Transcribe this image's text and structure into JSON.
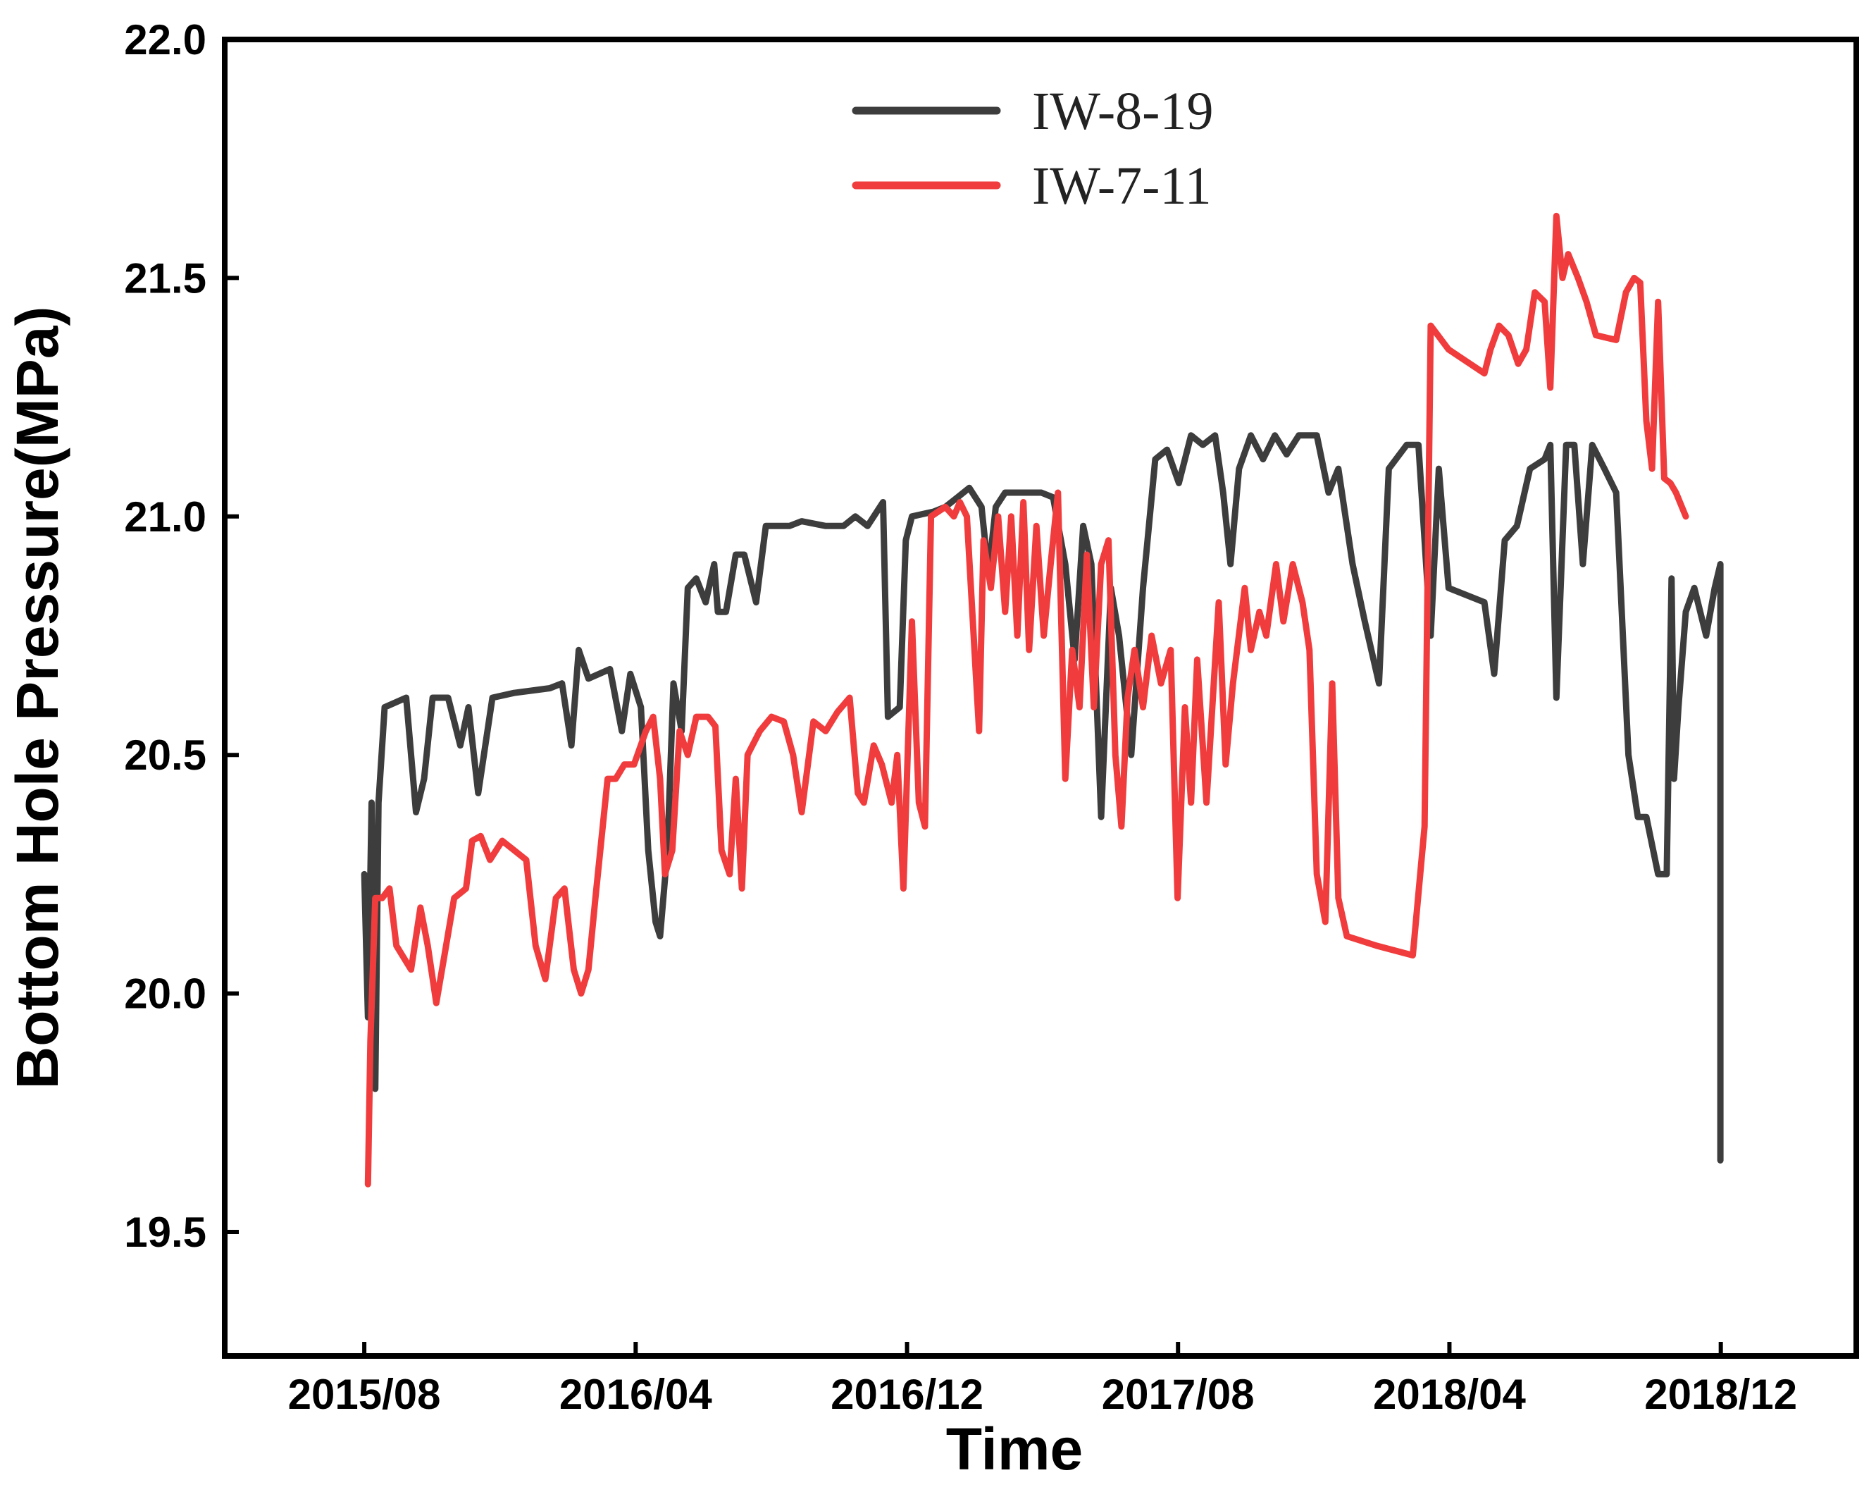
{
  "chart_data": {
    "type": "line",
    "xlabel": "Time",
    "ylabel": "Bottom Hole Pressure(MPa)",
    "xlim": [
      2015.24,
      2019.25
    ],
    "xticks": [
      {
        "value": 2015.583,
        "label": "2015/08"
      },
      {
        "value": 2016.25,
        "label": "2016/04"
      },
      {
        "value": 2016.917,
        "label": "2016/12"
      },
      {
        "value": 2017.583,
        "label": "2017/08"
      },
      {
        "value": 2018.25,
        "label": "2018/04"
      },
      {
        "value": 2018.917,
        "label": "2018/12"
      }
    ],
    "ylim": [
      19.24,
      22.0
    ],
    "yticks": [
      19.5,
      {
        "value": 20.0,
        "label": "20.0"
      },
      20.5,
      {
        "value": 21.0,
        "label": "21.0"
      },
      21.5,
      {
        "value": 22.0,
        "label": "22.0"
      }
    ],
    "grid": false,
    "legend": "upper center",
    "series": [
      {
        "name": "IW-8-19",
        "color": "#3d3d3d",
        "x": [
          2015.583,
          2015.592,
          2015.601,
          2015.61,
          2015.618,
          2015.633,
          2015.686,
          2015.71,
          2015.73,
          2015.751,
          2015.789,
          2015.819,
          2015.839,
          2015.863,
          2015.898,
          2015.951,
          2016.039,
          2016.069,
          2016.092,
          2016.11,
          2016.134,
          2016.187,
          2016.216,
          2016.237,
          2016.263,
          2016.281,
          2016.299,
          2016.31,
          2016.328,
          2016.343,
          2016.363,
          2016.378,
          2016.399,
          2016.422,
          2016.443,
          2016.452,
          2016.472,
          2016.496,
          2016.517,
          2016.546,
          2016.57,
          2016.628,
          2016.658,
          2016.717,
          2016.761,
          2016.79,
          2016.82,
          2016.858,
          2016.87,
          2016.899,
          2016.914,
          2016.929,
          2016.982,
          2017.011,
          2017.041,
          2017.07,
          2017.1,
          2017.117,
          2017.135,
          2017.158,
          2017.203,
          2017.247,
          2017.276,
          2017.306,
          2017.329,
          2017.35,
          2017.37,
          2017.394,
          2017.418,
          2017.438,
          2017.468,
          2017.497,
          2017.527,
          2017.556,
          2017.585,
          2017.615,
          2017.644,
          2017.674,
          2017.694,
          2017.712,
          2017.733,
          2017.762,
          2017.792,
          2017.821,
          2017.85,
          2017.88,
          2017.924,
          2017.953,
          2017.977,
          2018.012,
          2018.042,
          2018.077,
          2018.101,
          2018.145,
          2018.174,
          2018.204,
          2018.224,
          2018.248,
          2018.336,
          2018.36,
          2018.386,
          2018.416,
          2018.448,
          2018.484,
          2018.498,
          2018.513,
          2018.537,
          2018.557,
          2018.578,
          2018.601,
          2018.631,
          2018.66,
          2018.69,
          2018.713,
          2018.734,
          2018.763,
          2018.784,
          2018.796,
          2018.802,
          2018.813,
          2018.831,
          2018.852,
          2018.881,
          2018.902,
          2018.916,
          2018.916
        ],
        "values": [
          20.25,
          19.95,
          20.4,
          19.8,
          20.4,
          20.6,
          20.62,
          20.38,
          20.45,
          20.62,
          20.62,
          20.52,
          20.6,
          20.42,
          20.62,
          20.63,
          20.64,
          20.65,
          20.52,
          20.72,
          20.66,
          20.68,
          20.55,
          20.67,
          20.6,
          20.3,
          20.15,
          20.12,
          20.3,
          20.65,
          20.55,
          20.85,
          20.87,
          20.82,
          20.9,
          20.8,
          20.8,
          20.92,
          20.92,
          20.82,
          20.98,
          20.98,
          20.99,
          20.98,
          20.98,
          21.0,
          20.98,
          21.03,
          20.58,
          20.6,
          20.95,
          21.0,
          21.01,
          21.02,
          21.04,
          21.06,
          21.02,
          20.88,
          21.02,
          21.05,
          21.05,
          21.05,
          21.04,
          20.9,
          20.7,
          20.98,
          20.9,
          20.37,
          20.85,
          20.75,
          20.5,
          20.85,
          21.12,
          21.14,
          21.07,
          21.17,
          21.15,
          21.17,
          21.05,
          20.9,
          21.1,
          21.17,
          21.12,
          21.17,
          21.13,
          21.17,
          21.17,
          21.05,
          21.1,
          20.9,
          20.78,
          20.65,
          21.1,
          21.15,
          21.15,
          20.75,
          21.1,
          20.85,
          20.82,
          20.67,
          20.95,
          20.98,
          21.1,
          21.12,
          21.15,
          20.62,
          21.15,
          21.15,
          20.9,
          21.15,
          21.1,
          21.05,
          20.5,
          20.37,
          20.37,
          20.25,
          20.25,
          20.87,
          20.45,
          20.6,
          20.8,
          20.85,
          20.75,
          20.85,
          20.9,
          19.65
        ]
      },
      {
        "name": "IW-7-11",
        "color": "#f03c3c",
        "x": [
          2015.592,
          2015.598,
          2015.61,
          2015.627,
          2015.645,
          2015.662,
          2015.698,
          2015.721,
          2015.739,
          2015.76,
          2015.78,
          2015.804,
          2015.833,
          2015.848,
          2015.869,
          2015.892,
          2015.922,
          2015.981,
          2016.004,
          2016.028,
          2016.054,
          2016.075,
          2016.098,
          2016.116,
          2016.134,
          2016.151,
          2016.181,
          2016.201,
          2016.222,
          2016.246,
          2016.275,
          2016.293,
          2016.31,
          2016.322,
          2016.34,
          2016.358,
          2016.378,
          2016.399,
          2016.428,
          2016.446,
          2016.461,
          2016.481,
          2016.496,
          2016.511,
          2016.525,
          2016.555,
          2016.584,
          2016.614,
          2016.637,
          2016.658,
          2016.687,
          2016.717,
          2016.746,
          2016.776,
          2016.796,
          2016.811,
          2016.835,
          2016.855,
          2016.879,
          2016.893,
          2016.908,
          2016.929,
          2016.946,
          2016.961,
          2016.976,
          2017.011,
          2017.032,
          2017.047,
          2017.064,
          2017.094,
          2017.105,
          2017.123,
          2017.141,
          2017.158,
          2017.173,
          2017.188,
          2017.203,
          2017.217,
          2017.235,
          2017.253,
          2017.27,
          2017.288,
          2017.306,
          2017.323,
          2017.341,
          2017.359,
          2017.376,
          2017.394,
          2017.412,
          2017.429,
          2017.444,
          2017.459,
          2017.476,
          2017.497,
          2017.518,
          2017.541,
          2017.565,
          2017.582,
          2017.6,
          2017.615,
          2017.63,
          2017.653,
          2017.683,
          2017.7,
          2017.718,
          2017.747,
          2017.762,
          2017.783,
          2017.8,
          2017.824,
          2017.842,
          2017.865,
          2017.889,
          2017.906,
          2017.924,
          2017.945,
          2017.962,
          2017.977,
          2017.998,
          2018.071,
          2018.16,
          2018.189,
          2018.204,
          2018.248,
          2018.336,
          2018.351,
          2018.372,
          2018.395,
          2018.419,
          2018.439,
          2018.46,
          2018.484,
          2018.498,
          2018.513,
          2018.528,
          2018.542,
          2018.566,
          2018.587,
          2018.61,
          2018.66,
          2018.684,
          2018.704,
          2018.719,
          2018.734,
          2018.748,
          2018.763,
          2018.778,
          2018.793,
          2018.807,
          2018.831
        ],
        "values": [
          19.6,
          19.9,
          20.2,
          20.2,
          20.22,
          20.1,
          20.05,
          20.18,
          20.1,
          19.98,
          20.08,
          20.2,
          20.22,
          20.32,
          20.33,
          20.28,
          20.32,
          20.28,
          20.1,
          20.03,
          20.2,
          20.22,
          20.05,
          20.0,
          20.05,
          20.2,
          20.45,
          20.45,
          20.48,
          20.48,
          20.55,
          20.58,
          20.45,
          20.25,
          20.3,
          20.55,
          20.5,
          20.58,
          20.58,
          20.56,
          20.3,
          20.25,
          20.45,
          20.22,
          20.5,
          20.55,
          20.58,
          20.57,
          20.5,
          20.38,
          20.57,
          20.55,
          20.59,
          20.62,
          20.42,
          20.4,
          20.52,
          20.48,
          20.4,
          20.5,
          20.22,
          20.78,
          20.4,
          20.35,
          21.0,
          21.02,
          21.0,
          21.03,
          21.0,
          20.55,
          20.95,
          20.85,
          21.0,
          20.8,
          21.0,
          20.75,
          21.03,
          20.72,
          20.98,
          20.75,
          20.9,
          21.05,
          20.45,
          20.72,
          20.6,
          20.92,
          20.6,
          20.9,
          20.95,
          20.5,
          20.35,
          20.62,
          20.72,
          20.6,
          20.75,
          20.65,
          20.72,
          20.2,
          20.6,
          20.4,
          20.7,
          20.4,
          20.82,
          20.48,
          20.65,
          20.85,
          20.72,
          20.8,
          20.75,
          20.9,
          20.78,
          20.9,
          20.82,
          20.72,
          20.25,
          20.15,
          20.65,
          20.2,
          20.12,
          20.1,
          20.08,
          20.35,
          21.4,
          21.35,
          21.3,
          21.35,
          21.4,
          21.38,
          21.32,
          21.35,
          21.47,
          21.45,
          21.27,
          21.63,
          21.5,
          21.55,
          21.5,
          21.45,
          21.38,
          21.37,
          21.47,
          21.5,
          21.49,
          21.2,
          21.1,
          21.45,
          21.08,
          21.07,
          21.05,
          21.0
        ]
      }
    ]
  }
}
